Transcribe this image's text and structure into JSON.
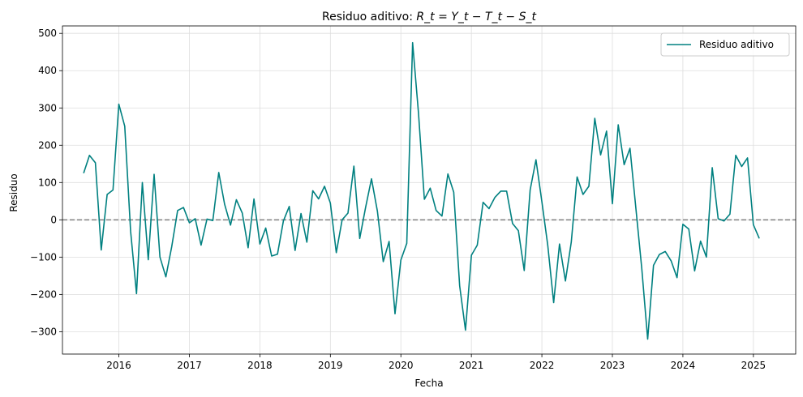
{
  "chart_data": {
    "type": "line",
    "title_main": "Residuo aditivo: ",
    "title_math": "R_t = Y_t − T_t − S_t",
    "xlabel": "Fecha",
    "ylabel": "Residuo",
    "x_tick_labels": [
      "2016",
      "2017",
      "2018",
      "2019",
      "2020",
      "2021",
      "2022",
      "2023",
      "2024",
      "2025"
    ],
    "y_ticks": [
      -300,
      -200,
      -100,
      0,
      100,
      200,
      300,
      400,
      500
    ],
    "y_tick_labels": [
      "−300",
      "−200",
      "−100",
      "0",
      "100",
      "200",
      "300",
      "400",
      "500"
    ],
    "xlim": [
      2015.2,
      2025.6
    ],
    "ylim": [
      -360,
      520
    ],
    "grid": true,
    "legend_position": "upper right",
    "zero_line": {
      "y": 0,
      "style": "dashed",
      "color": "#808080"
    },
    "series": [
      {
        "name": "Residuo aditivo",
        "color": "#008080",
        "start_year": 2015,
        "start_month": 7,
        "values": [
          125,
          173,
          153,
          -81,
          68,
          80,
          310,
          251,
          -30,
          -198,
          100,
          -107,
          122,
          -100,
          -153,
          -72,
          25,
          33,
          -8,
          3,
          -68,
          2,
          -2,
          127,
          42,
          -14,
          54,
          18,
          -75,
          56,
          -65,
          -22,
          -97,
          -92,
          -3,
          36,
          -82,
          17,
          -60,
          78,
          56,
          90,
          45,
          -88,
          0,
          18,
          144,
          -50,
          34,
          110,
          23,
          -112,
          -58,
          -252,
          -108,
          -63,
          475,
          285,
          55,
          85,
          25,
          10,
          123,
          74,
          -177,
          -296,
          -95,
          -68,
          47,
          30,
          60,
          77,
          77,
          -10,
          -29,
          -136,
          80,
          161,
          48,
          -68,
          -222,
          -65,
          -164,
          -60,
          115,
          68,
          90,
          272,
          174,
          238,
          43,
          255,
          148,
          192,
          30,
          -130,
          -320,
          -122,
          -93,
          -85,
          -110,
          -155,
          -12,
          -25,
          -137,
          -57,
          -100,
          140,
          3,
          -3,
          15,
          173,
          143,
          166,
          -13,
          -50
        ]
      }
    ]
  }
}
